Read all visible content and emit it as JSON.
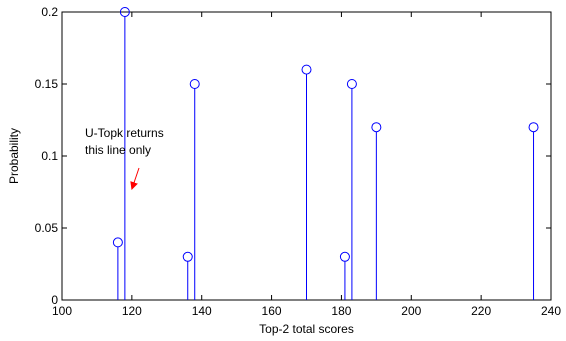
{
  "chart_data": {
    "type": "stem",
    "xlabel": "Top-2 total scores",
    "ylabel": "Probability",
    "xlim": [
      100,
      240
    ],
    "ylim": [
      0,
      0.2
    ],
    "xticks": [
      100,
      120,
      140,
      160,
      180,
      200,
      220,
      240
    ],
    "yticks": [
      0,
      0.05,
      0.1,
      0.15,
      0.2
    ],
    "ytick_labels": [
      "0",
      "0.05",
      "0.1",
      "0.15",
      "0.2"
    ],
    "grid": false,
    "stem_color": "#0000ff",
    "marker": "circle",
    "points": [
      {
        "x": 116,
        "y": 0.04
      },
      {
        "x": 118,
        "y": 0.2
      },
      {
        "x": 136,
        "y": 0.03
      },
      {
        "x": 138,
        "y": 0.15
      },
      {
        "x": 170,
        "y": 0.16
      },
      {
        "x": 181,
        "y": 0.03
      },
      {
        "x": 183,
        "y": 0.15
      },
      {
        "x": 190,
        "y": 0.12
      },
      {
        "x": 235,
        "y": 0.12
      }
    ],
    "annotation": {
      "lines": [
        "U-Topk returns",
        "this line only"
      ],
      "target_x": 118,
      "arrow_color": "#ff0000"
    }
  }
}
